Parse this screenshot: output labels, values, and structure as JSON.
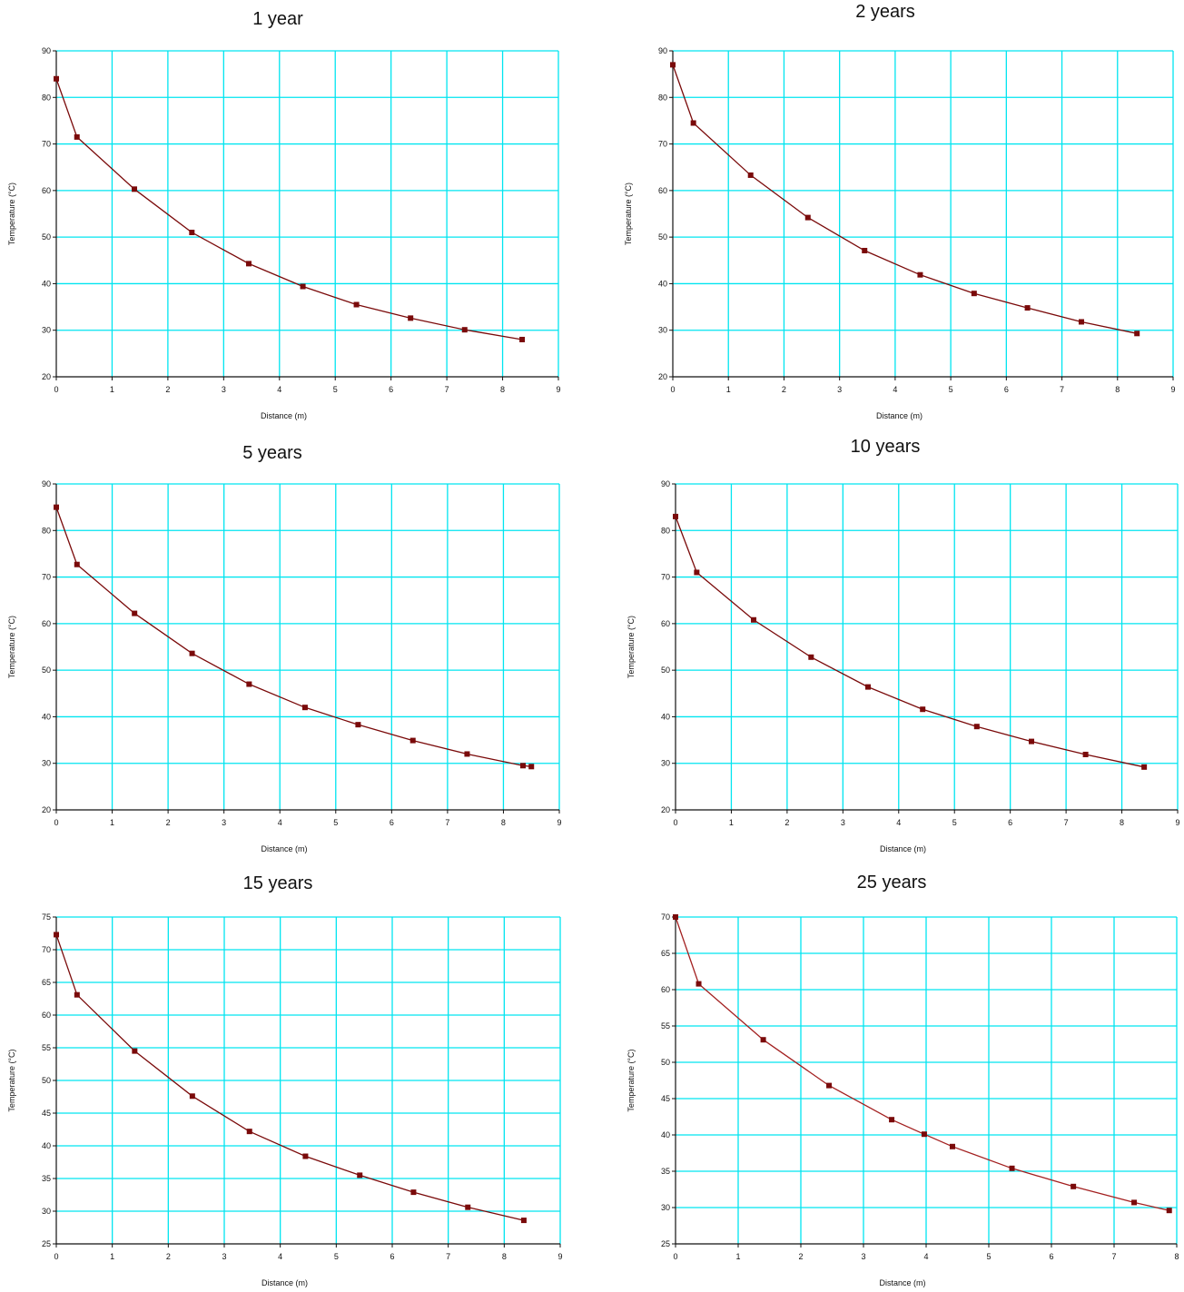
{
  "colors": {
    "grid": "#00e5f0",
    "axis": "#111111",
    "series": "#7a0a0a",
    "series_light": "#a32020"
  },
  "chart_data": [
    {
      "type": "line",
      "title": "1 year",
      "xlabel": "Distance (m)",
      "ylabel": "Temperature (°C)",
      "xlim": [
        0,
        9
      ],
      "ylim": [
        20,
        90
      ],
      "xticks": [
        0,
        1,
        2,
        3,
        4,
        5,
        6,
        7,
        8,
        9
      ],
      "yticks": [
        20,
        30,
        40,
        50,
        60,
        70,
        80,
        90
      ],
      "grid": true,
      "series": [
        {
          "x": [
            0,
            0.37,
            1.4,
            2.43,
            3.45,
            4.42,
            5.38,
            6.35,
            7.32,
            8.35
          ],
          "y": [
            84,
            71.5,
            60.3,
            51,
            44.3,
            39.4,
            35.5,
            32.6,
            30.1,
            28
          ]
        }
      ]
    },
    {
      "type": "line",
      "title": "2 years",
      "xlabel": "Distance (m)",
      "ylabel": "Temperature (°C)",
      "xlim": [
        0,
        9
      ],
      "ylim": [
        20,
        90
      ],
      "xticks": [
        0,
        1,
        2,
        3,
        4,
        5,
        6,
        7,
        8,
        9
      ],
      "yticks": [
        20,
        30,
        40,
        50,
        60,
        70,
        80,
        90
      ],
      "grid": true,
      "series": [
        {
          "x": [
            0,
            0.37,
            1.4,
            2.43,
            3.45,
            4.45,
            5.42,
            6.38,
            7.35,
            8.35
          ],
          "y": [
            87,
            74.5,
            63.3,
            54.2,
            47.1,
            41.9,
            37.9,
            34.8,
            31.8,
            29.3
          ]
        }
      ]
    },
    {
      "type": "line",
      "title": "5 years",
      "xlabel": "Distance (m)",
      "ylabel": "Temperature (°C)",
      "xlim": [
        0,
        9
      ],
      "ylim": [
        20,
        90
      ],
      "xticks": [
        0,
        1,
        2,
        3,
        4,
        5,
        6,
        7,
        8,
        9
      ],
      "yticks": [
        20,
        30,
        40,
        50,
        60,
        70,
        80,
        90
      ],
      "grid": true,
      "series": [
        {
          "x": [
            0,
            0.37,
            1.4,
            2.43,
            3.45,
            4.45,
            5.4,
            6.38,
            7.35,
            8.35,
            8.5
          ],
          "y": [
            85,
            72.7,
            62.2,
            53.6,
            47,
            42,
            38.3,
            34.9,
            32,
            29.5,
            29.3
          ]
        }
      ]
    },
    {
      "type": "line",
      "title": "10 years",
      "xlabel": "Distance (m)",
      "ylabel": "Temperature (°C)",
      "xlim": [
        0,
        9
      ],
      "ylim": [
        20,
        90
      ],
      "xticks": [
        0,
        1,
        2,
        3,
        4,
        5,
        6,
        7,
        8,
        9
      ],
      "yticks": [
        20,
        30,
        40,
        50,
        60,
        70,
        80,
        90
      ],
      "grid": true,
      "series": [
        {
          "x": [
            0,
            0.38,
            1.4,
            2.43,
            3.45,
            4.43,
            5.4,
            6.38,
            7.35,
            8.4
          ],
          "y": [
            83,
            71,
            60.8,
            52.8,
            46.4,
            41.6,
            37.9,
            34.7,
            31.9,
            29.2
          ]
        }
      ]
    },
    {
      "type": "line",
      "title": "15 years",
      "xlabel": "Distance (m)",
      "ylabel": "Temperature (°C)",
      "xlim": [
        0,
        9
      ],
      "ylim": [
        25,
        75
      ],
      "xticks": [
        0,
        1,
        2,
        3,
        4,
        5,
        6,
        7,
        8,
        9
      ],
      "yticks": [
        25,
        30,
        35,
        40,
        45,
        50,
        55,
        60,
        65,
        70,
        75
      ],
      "grid": true,
      "series": [
        {
          "x": [
            0,
            0.37,
            1.4,
            2.43,
            3.45,
            4.45,
            5.42,
            6.38,
            7.35,
            8.35
          ],
          "y": [
            72.3,
            63.1,
            54.5,
            47.6,
            42.2,
            38.4,
            35.5,
            32.9,
            30.6,
            28.6
          ]
        }
      ]
    },
    {
      "type": "line",
      "title": "25 years",
      "xlabel": "Distance (m)",
      "ylabel": "Temperature (°C)",
      "xlim": [
        0,
        8
      ],
      "ylim": [
        25,
        70
      ],
      "xticks": [
        0,
        1,
        2,
        3,
        4,
        5,
        6,
        7,
        8
      ],
      "yticks": [
        25,
        30,
        35,
        40,
        45,
        50,
        55,
        60,
        65,
        70
      ],
      "grid": true,
      "series": [
        {
          "x": [
            0,
            0.37,
            1.4,
            2.45,
            3.45,
            3.97,
            4.42,
            5.37,
            6.35,
            7.32,
            7.88
          ],
          "y": [
            70,
            60.8,
            53.1,
            46.8,
            42.1,
            40.1,
            38.4,
            35.4,
            32.9,
            30.7,
            29.6
          ]
        }
      ]
    }
  ]
}
